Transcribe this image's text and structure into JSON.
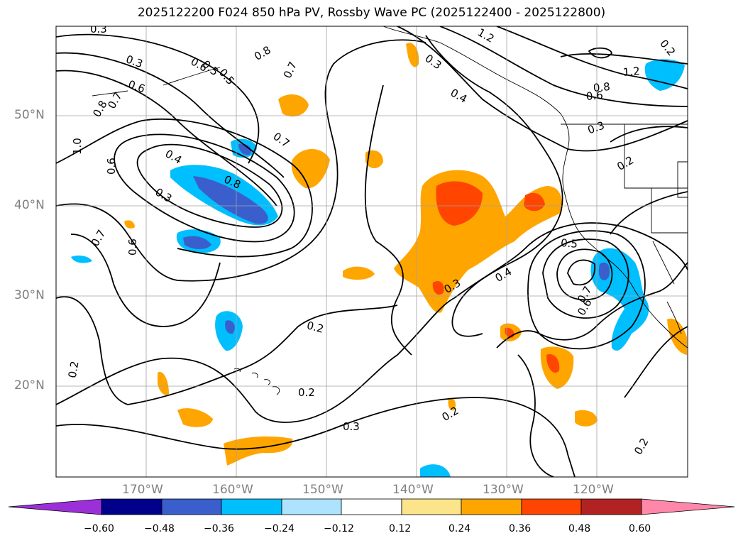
{
  "title": "2025122200 F024 850 hPa PV, Rossby Wave PC (2025122400 - 2025122800)",
  "map": {
    "lat_labels": [
      "50°N",
      "40°N",
      "30°N",
      "20°N"
    ],
    "lon_labels": [
      "170°W",
      "160°W",
      "150°W",
      "140°W",
      "130°W",
      "120°W"
    ],
    "contour_labels": [
      "0.3",
      "0.3",
      "0.6",
      "0.8",
      "0.7",
      "1.0",
      "0.6",
      "0.4",
      "0.3",
      "0.8",
      "0.7",
      "0.6",
      "0.7",
      "0.6",
      "0.8",
      "0.5",
      "0.7",
      "0.5",
      "0.3",
      "0.4",
      "1.2",
      "1.2",
      "0.8",
      "0.6",
      "0.3",
      "0.2",
      "0.5",
      "0.4",
      "0.3",
      "0.7",
      "0.6",
      "0.2",
      "0.2",
      "0.2",
      "0.3",
      "0.2",
      "0.2",
      "0.2"
    ]
  },
  "colorbar": {
    "ticks": [
      "−0.60",
      "−0.48",
      "−0.36",
      "−0.24",
      "−0.12",
      "0.12",
      "0.24",
      "0.36",
      "0.48",
      "0.60"
    ],
    "colors": [
      "#9b30d8",
      "#00008b",
      "#3a5fcd",
      "#00bfff",
      "#aee3ff",
      "#ffffff",
      "#fbe48a",
      "#ffa500",
      "#ff4500",
      "#b22222",
      "#ff88aa"
    ]
  },
  "fill_colors": {
    "orange": "#ffa500",
    "orange_red": "#ff4500",
    "light_yellow": "#fbe48a",
    "deep_sky_blue": "#00bfff",
    "royal_blue": "#3a5fcd",
    "light_blue": "#aee3ff"
  }
}
